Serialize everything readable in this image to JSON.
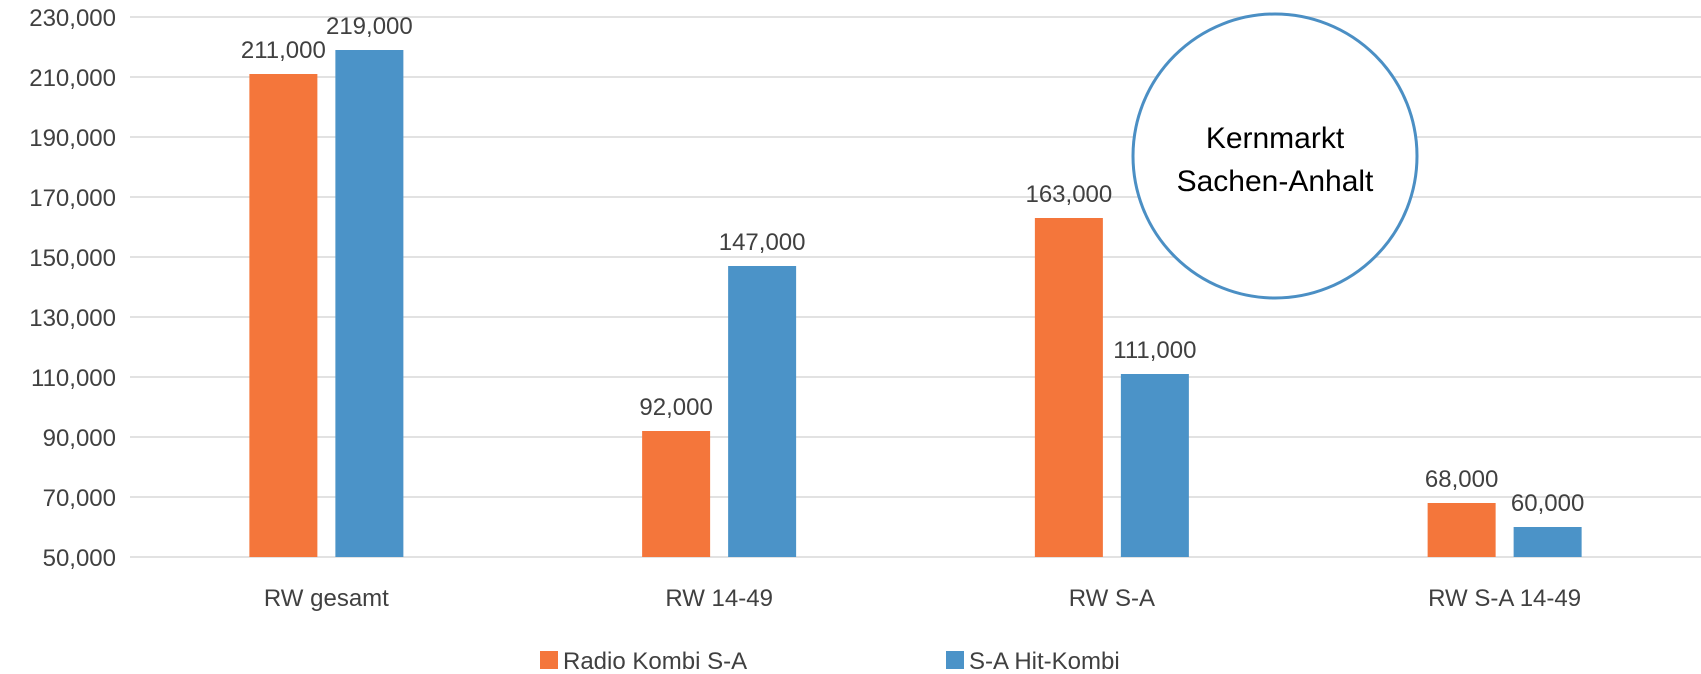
{
  "chart_data": {
    "type": "bar",
    "title": "",
    "xlabel": "",
    "ylabel": "",
    "categories": [
      "RW gesamt",
      "RW 14-49",
      "RW S-A",
      "RW S-A 14-49"
    ],
    "series": [
      {
        "name": "Radio Kombi S-A",
        "color": "#f4763b",
        "values": [
          211000,
          92000,
          163000,
          68000
        ],
        "value_labels": [
          "211,000",
          "92,000",
          "163,000",
          "68,000"
        ]
      },
      {
        "name": "S-A Hit-Kombi",
        "color": "#4b93c8",
        "values": [
          219000,
          147000,
          111000,
          60000
        ],
        "value_labels": [
          "219,000",
          "147,000",
          "111,000",
          "60,000"
        ]
      }
    ],
    "ylim": [
      50000,
      230000
    ],
    "yticks": [
      50000,
      70000,
      90000,
      110000,
      130000,
      150000,
      170000,
      190000,
      210000,
      230000
    ],
    "ytick_labels": [
      "50,000",
      "70,000",
      "90,000",
      "110,000",
      "130,000",
      "150,000",
      "170,000",
      "190,000",
      "210,000",
      "230,000"
    ],
    "grid": true,
    "legend_position": "bottom",
    "annotation": {
      "lines": [
        "Kernmarkt",
        "Sachen-Anhalt"
      ],
      "shape": "circle",
      "border_color": "#4b8fc4"
    }
  }
}
